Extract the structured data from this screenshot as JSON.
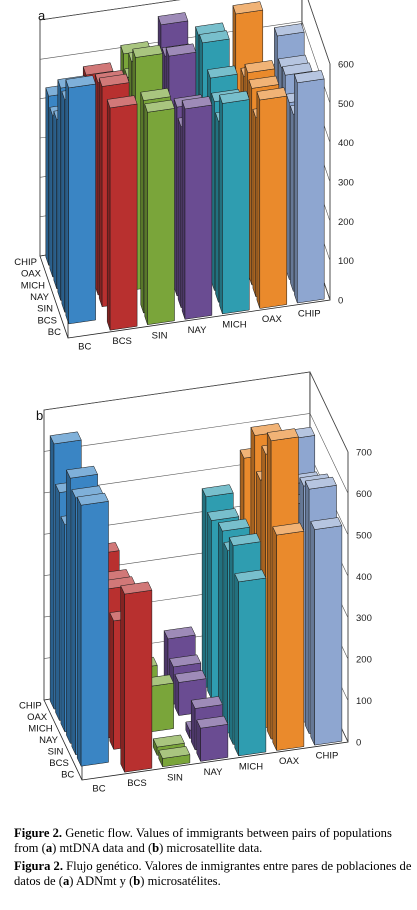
{
  "palette": {
    "BC": "#3a85c4",
    "BCS": "#b8302f",
    "SIN": "#7aa53a",
    "NAY": "#6a4c92",
    "MICH": "#2f9db0",
    "OAX": "#ea8a2c",
    "CHIP": "#8ea6d0"
  },
  "chart_data": [
    {
      "type": "bar3d",
      "panel_label": "a",
      "row_categories": [
        "BC",
        "BCS",
        "SIN",
        "NAY",
        "MICH",
        "OAX",
        "CHIP"
      ],
      "column_categories": [
        "BC",
        "BCS",
        "SIN",
        "NAY",
        "MICH",
        "OAX",
        "CHIP"
      ],
      "zlim": [
        0,
        600
      ],
      "z_ticks": [
        0,
        100,
        200,
        300,
        400,
        500,
        600
      ],
      "grid": true,
      "series": [
        {
          "name": "BC",
          "values": [
            null,
            565,
            540,
            535,
            535,
            530,
            560
          ]
        },
        {
          "name": "BCS",
          "values": [
            600,
            null,
            540,
            460,
            460,
            455,
            450
          ]
        },
        {
          "name": "SIN",
          "values": [
            540,
            560,
            null,
            480,
            480,
            500,
            450
          ]
        },
        {
          "name": "NAY",
          "values": [
            540,
            540,
            590,
            null,
            510,
            510,
            490
          ]
        },
        {
          "name": "MICH",
          "values": [
            430,
            475,
            550,
            550,
            null,
            470,
            480
          ]
        },
        {
          "name": "OAX",
          "values": [
            410,
            430,
            480,
            520,
            540,
            null,
            530
          ]
        },
        {
          "name": "CHIP",
          "values": [
            430,
            470,
            510,
            570,
            530,
            570,
            null
          ]
        }
      ]
    },
    {
      "type": "bar3d",
      "panel_label": "b",
      "row_categories": [
        "BC",
        "BCS",
        "SIN",
        "NAY",
        "MICH",
        "OAX",
        "CHIP"
      ],
      "column_categories": [
        "BC",
        "BCS",
        "SIN",
        "NAY",
        "MICH",
        "OAX",
        "CHIP"
      ],
      "zlim": [
        0,
        700
      ],
      "z_ticks": [
        0,
        100,
        200,
        300,
        400,
        500,
        600,
        700
      ],
      "grid": true,
      "series": [
        {
          "name": "BC",
          "values": [
            null,
            430,
            20,
            80,
            420,
            520,
            520
          ]
        },
        {
          "name": "BCS",
          "values": [
            630,
            null,
            20,
            100,
            480,
            720,
            590
          ]
        },
        {
          "name": "SIN",
          "values": [
            620,
            310,
            null,
            20,
            440,
            660,
            570
          ]
        },
        {
          "name": "NAY",
          "values": [
            640,
            360,
            110,
            null,
            460,
            570,
            500
          ]
        },
        {
          "name": "MICH",
          "values": [
            500,
            350,
            60,
            80,
            null,
            650,
            520
          ]
        },
        {
          "name": "OAX",
          "values": [
            550,
            300,
            40,
            90,
            430,
            null,
            600
          ]
        },
        {
          "name": "CHIP",
          "values": [
            640,
            360,
            70,
            130,
            460,
            540,
            null
          ]
        }
      ]
    }
  ],
  "caption": {
    "en_label": "Figure 2.",
    "en_text": " Genetic flow. Values of immigrants between pairs of populations from (",
    "en_a": "a",
    "en_mid": ") mtDNA data and (",
    "en_b": "b",
    "en_end": ") microsatellite data.",
    "es_label": "Figura 2.",
    "es_text": " Flujo genético. Valores de inmigrantes entre pares de poblaciones de datos de (",
    "es_a": "a",
    "es_mid": ") ADNmt y (",
    "es_b": "b",
    "es_end": ") microsatélites."
  }
}
